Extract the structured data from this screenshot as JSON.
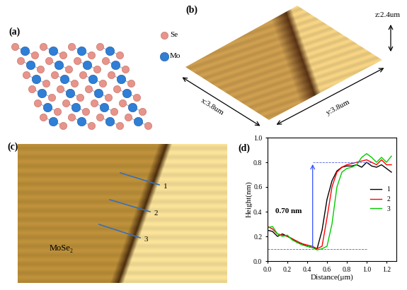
{
  "figure": {
    "panel_labels": [
      "(a)",
      "(b)",
      "(c)",
      "(d)"
    ],
    "structure": {
      "atoms": [
        "Se",
        "Mo"
      ]
    },
    "afm_3d": {
      "x_label": "x:3.8um",
      "y_label": "y:3.8um",
      "z_label": "z:2.4um"
    },
    "afm_2d": {
      "material": "MoSe₂",
      "profile_labels": [
        "1",
        "2",
        "3"
      ]
    }
  },
  "chart_data": {
    "type": "line",
    "xlabel": "Distance(μm)",
    "ylabel": "Height(nm)",
    "x": [
      0,
      0.05,
      0.1,
      0.15,
      0.2,
      0.25,
      0.3,
      0.35,
      0.4,
      0.45,
      0.5,
      0.55,
      0.6,
      0.65,
      0.7,
      0.75,
      0.8,
      0.85,
      0.9,
      0.95,
      1.0,
      1.05,
      1.1,
      1.15,
      1.2,
      1.25
    ],
    "series": [
      {
        "name": "1",
        "color": "#000000",
        "values": [
          0.25,
          0.24,
          0.2,
          0.22,
          0.2,
          0.18,
          0.15,
          0.14,
          0.12,
          0.11,
          0.1,
          0.25,
          0.5,
          0.65,
          0.73,
          0.76,
          0.77,
          0.77,
          0.78,
          0.76,
          0.8,
          0.77,
          0.76,
          0.78,
          0.75,
          0.72
        ]
      },
      {
        "name": "2",
        "color": "#ff0000",
        "values": [
          0.28,
          0.26,
          0.22,
          0.21,
          0.2,
          0.18,
          0.16,
          0.14,
          0.13,
          0.12,
          0.1,
          0.12,
          0.35,
          0.6,
          0.72,
          0.76,
          0.78,
          0.79,
          0.8,
          0.81,
          0.82,
          0.8,
          0.78,
          0.82,
          0.78,
          0.78
        ]
      },
      {
        "name": "3",
        "color": "#00cc00",
        "values": [
          0.27,
          0.28,
          0.22,
          0.2,
          0.21,
          0.17,
          0.15,
          0.13,
          0.12,
          0.11,
          0.09,
          0.1,
          0.12,
          0.3,
          0.6,
          0.72,
          0.75,
          0.76,
          0.78,
          0.84,
          0.87,
          0.84,
          0.8,
          0.84,
          0.8,
          0.85
        ]
      }
    ],
    "xlim": [
      0,
      1.3
    ],
    "ylim": [
      0,
      1.0
    ],
    "xticks": [
      {
        "value": 0.0,
        "label": "0.0"
      },
      {
        "value": 0.2,
        "label": "0.2"
      },
      {
        "value": 0.4,
        "label": "0.4"
      },
      {
        "value": 0.6,
        "label": "0.6"
      },
      {
        "value": 0.8,
        "label": "0.8"
      },
      {
        "value": 1.0,
        "label": "1.0"
      },
      {
        "value": 1.2,
        "label": "1.2"
      }
    ],
    "yticks": [
      {
        "value": 0.0,
        "label": "0.0"
      },
      {
        "value": 0.2,
        "label": "0.2"
      },
      {
        "value": 0.4,
        "label": "0.4"
      },
      {
        "value": 0.6,
        "label": "0.6"
      },
      {
        "value": 0.8,
        "label": "0.8"
      },
      {
        "value": 1.0,
        "label": "1.0"
      }
    ],
    "legend": "center right",
    "annotations": [
      {
        "text": "0.70 nm",
        "from": 0.1,
        "to": 0.8
      }
    ]
  }
}
